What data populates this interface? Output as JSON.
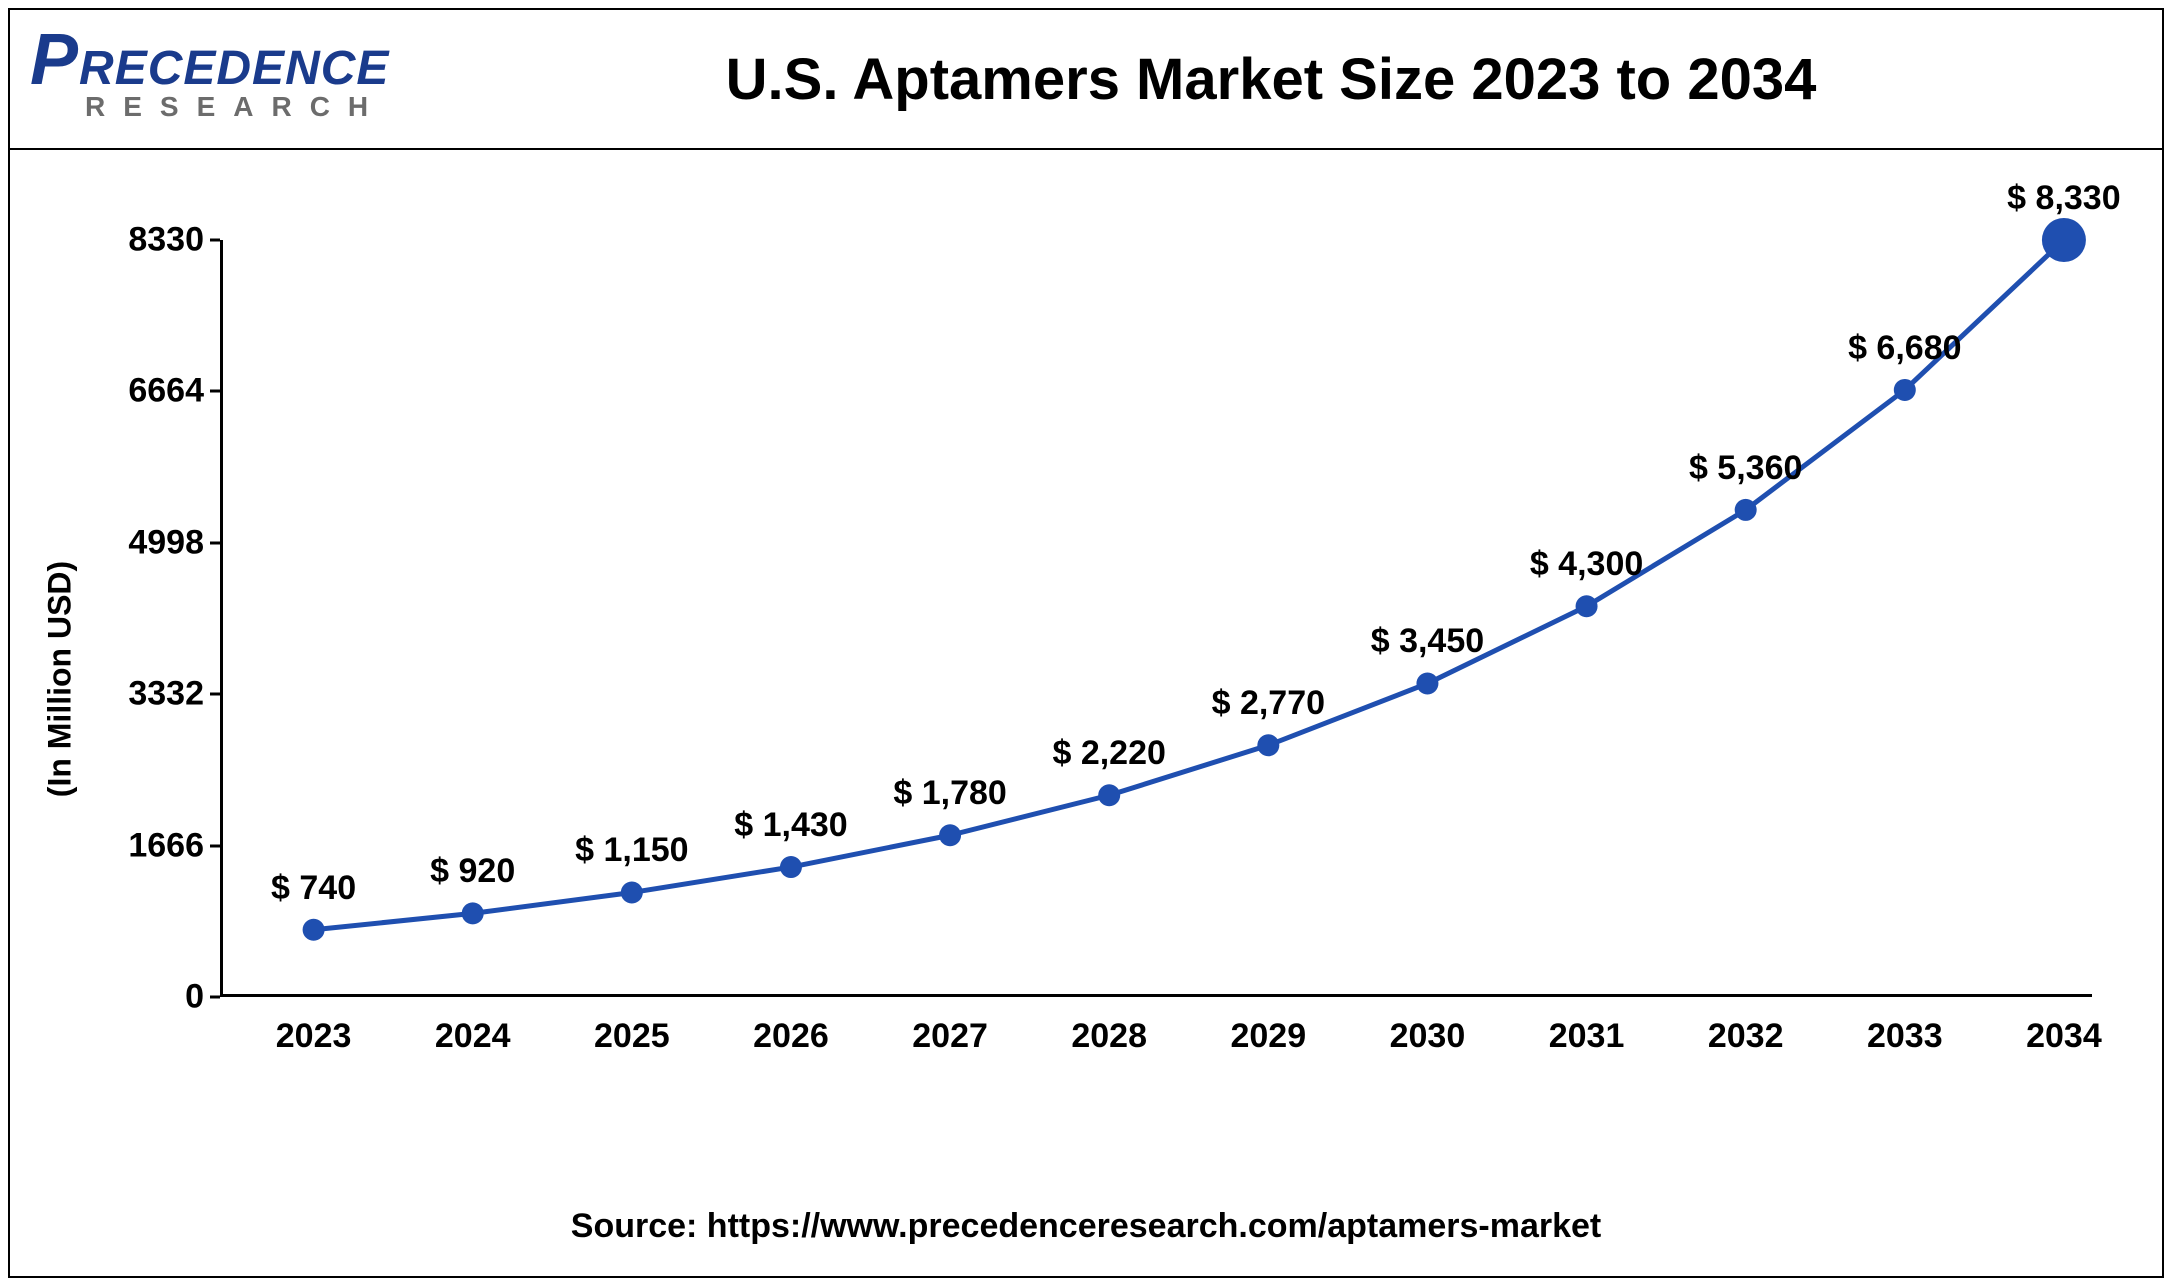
{
  "logo": {
    "brand_p": "P",
    "brand_rest": "RECEDENCE",
    "sub": "RESEARCH"
  },
  "chart": {
    "type": "line",
    "title": "U.S. Aptamers Market Size 2023 to 2034",
    "title_fontsize": 58,
    "y_axis_label": "(In Million USD)",
    "label_fontsize": 32,
    "years": [
      "2023",
      "2024",
      "2025",
      "2026",
      "2027",
      "2028",
      "2029",
      "2030",
      "2031",
      "2032",
      "2033",
      "2034"
    ],
    "values": [
      740,
      920,
      1150,
      1430,
      1780,
      2220,
      2770,
      3450,
      4300,
      5360,
      6680,
      8330
    ],
    "data_labels": [
      "$ 740",
      "$ 920",
      "$ 1,150",
      "$ 1,430",
      "$ 1,780",
      "$ 2,220",
      "$ 2,770",
      "$ 3,450",
      "$ 4,300",
      "$ 5,360",
      "$ 6,680",
      "$ 8,330"
    ],
    "y_ticks": [
      0,
      1666,
      3332,
      4998,
      6664,
      8330
    ],
    "y_tick_labels": [
      "0",
      "1666",
      "3332",
      "4998",
      "6664",
      "8330"
    ],
    "ylim": [
      0,
      8330
    ],
    "line_color": "#1f4fb0",
    "line_width": 5,
    "marker_color": "#1f4fb0",
    "marker_radius": 11,
    "last_marker_radius": 22,
    "background_color": "#ffffff",
    "axis_color": "#000000",
    "tick_fontsize": 34,
    "datalabel_fontsize": 34
  },
  "source": "Source: https://www.precedenceresearch.com/aptamers-market"
}
